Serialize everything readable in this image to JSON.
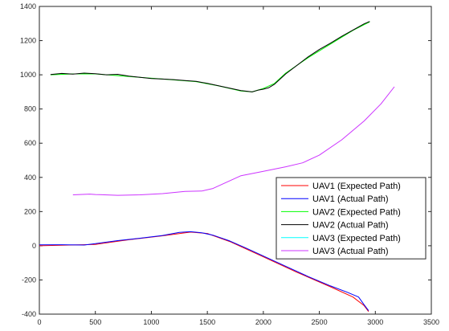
{
  "chart_data": {
    "type": "line",
    "title": "",
    "xlabel": "",
    "ylabel": "",
    "xlim": [
      0,
      3500
    ],
    "ylim": [
      -400,
      1400
    ],
    "xticks": [
      0,
      500,
      1000,
      1500,
      2000,
      2500,
      3000,
      3500
    ],
    "yticks": [
      -400,
      -200,
      0,
      200,
      400,
      600,
      800,
      1000,
      1200,
      1400
    ],
    "grid": false,
    "legend_position": "right",
    "series": [
      {
        "name": "UAV1 (Expected Path)",
        "color": "#ff0000",
        "x": [
          0,
          500,
          800,
          1100,
          1350,
          1500,
          1700,
          2000,
          2300,
          2600,
          2800,
          2900,
          2940
        ],
        "y": [
          0,
          8,
          35,
          58,
          80,
          72,
          25,
          -65,
          -155,
          -240,
          -300,
          -350,
          -385
        ]
      },
      {
        "name": "UAV1 (Actual Path)",
        "color": "#0000ff",
        "x": [
          0,
          200,
          400,
          500,
          700,
          900,
          1100,
          1250,
          1350,
          1450,
          1550,
          1700,
          1850,
          2000,
          2200,
          2400,
          2600,
          2750,
          2850,
          2900,
          2940
        ],
        "y": [
          5,
          6,
          4,
          12,
          30,
          44,
          60,
          78,
          82,
          76,
          62,
          28,
          -15,
          -60,
          -120,
          -180,
          -235,
          -272,
          -300,
          -345,
          -380
        ]
      },
      {
        "name": "UAV2 (Expected  Path)",
        "color": "#00ff00",
        "x": [
          100,
          300,
          500,
          800,
          1100,
          1400,
          1600,
          1800,
          1900,
          2000,
          2100,
          2200,
          2400,
          2600,
          2800,
          2950
        ],
        "y": [
          1000,
          1005,
          1005,
          990,
          975,
          960,
          935,
          905,
          900,
          920,
          950,
          1010,
          1100,
          1180,
          1260,
          1310
        ]
      },
      {
        "name": "UAV2 (Actual Path)",
        "color": "#000000",
        "x": [
          100,
          200,
          300,
          400,
          500,
          600,
          700,
          800,
          900,
          1000,
          1100,
          1200,
          1300,
          1400,
          1500,
          1600,
          1700,
          1800,
          1850,
          1900,
          1950,
          2000,
          2050,
          2100,
          2200,
          2300,
          2400,
          2500,
          2600,
          2700,
          2800,
          2900,
          2950
        ],
        "y": [
          1002,
          1008,
          1004,
          1010,
          1006,
          1000,
          1003,
          992,
          985,
          978,
          975,
          972,
          966,
          962,
          950,
          936,
          922,
          908,
          904,
          900,
          910,
          916,
          925,
          945,
          1005,
          1055,
          1105,
          1148,
          1185,
          1225,
          1262,
          1298,
          1312
        ]
      },
      {
        "name": "UAV3 (Expected  Path)",
        "color": "#00ffff",
        "x": [],
        "y": []
      },
      {
        "name": "UAV3 (Actual Path)",
        "color": "#cc33ff",
        "x": [
          300,
          450,
          500,
          700,
          900,
          1100,
          1300,
          1450,
          1550,
          1650,
          1800,
          2000,
          2200,
          2350,
          2500,
          2700,
          2900,
          3050,
          3170
        ],
        "y": [
          298,
          302,
          300,
          295,
          298,
          305,
          318,
          320,
          335,
          365,
          410,
          435,
          462,
          485,
          530,
          620,
          730,
          830,
          930
        ]
      }
    ]
  }
}
